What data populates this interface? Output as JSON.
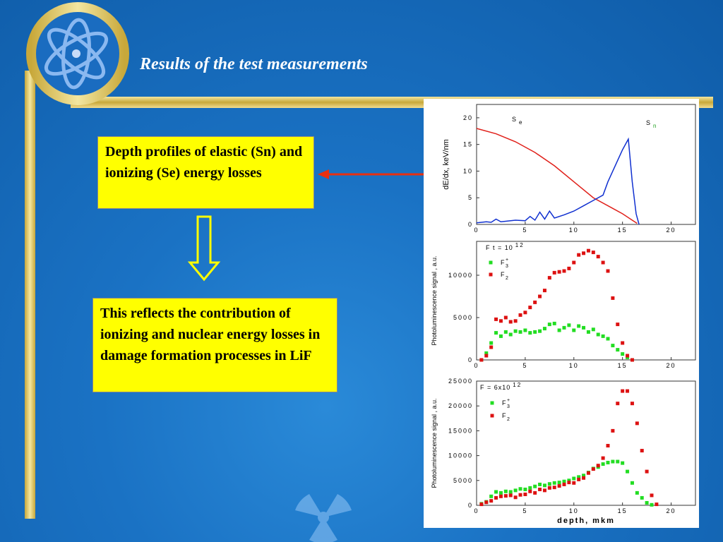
{
  "slide": {
    "title": "Results of the test measurements",
    "box1": "Depth profiles of elastic (Sn) and ionizing (Se) energy losses",
    "box2": "This reflects the contribution of ionizing and nuclear energy losses in damage formation processes in LiF"
  },
  "chart_data": [
    {
      "type": "line",
      "y_label": "dE/dx, keV/nm",
      "xlim": [
        0,
        22.5
      ],
      "ylim": [
        0,
        22.5
      ],
      "xticks": [
        0,
        5,
        10,
        15,
        20
      ],
      "yticks": [
        0,
        5,
        10,
        15,
        20
      ],
      "annotations": [
        {
          "text": "S",
          "sub": "e"
        },
        {
          "text": "S",
          "sub": "n"
        }
      ],
      "series": [
        {
          "name": "Se",
          "color": "#e0201a",
          "x": [
            0,
            2,
            4,
            6,
            8,
            10,
            12,
            14,
            15,
            16,
            16.5
          ],
          "values": [
            18,
            17,
            15.5,
            13.5,
            11,
            8,
            5,
            3,
            2,
            0.8,
            0.2
          ]
        },
        {
          "name": "Sn",
          "color": "#1030d0",
          "x": [
            0,
            1,
            1.5,
            2,
            2.5,
            3,
            4,
            5,
            5.5,
            6,
            6.5,
            7,
            7.5,
            8,
            9,
            10,
            11,
            12,
            13,
            13.5,
            14,
            14.5,
            15,
            15.6,
            16,
            16.4,
            16.7
          ],
          "values": [
            0.3,
            0.5,
            0.4,
            1,
            0.5,
            0.6,
            0.8,
            0.7,
            1.5,
            0.8,
            2.3,
            1,
            2.5,
            1.2,
            1.8,
            2.5,
            3.5,
            4.5,
            5.5,
            8,
            10,
            12,
            14,
            16,
            8,
            2,
            0
          ]
        }
      ]
    },
    {
      "type": "scatter",
      "y_label": "Photoluminescence signal , a.u.",
      "xlim": [
        0,
        22.5
      ],
      "ylim": [
        0,
        14000
      ],
      "xticks": [
        0,
        5,
        10,
        15,
        20
      ],
      "yticks": [
        0,
        5000,
        10000
      ],
      "annotations": [
        {
          "text": "F t = 10",
          "sup": "12"
        }
      ],
      "x": [
        0.5,
        1,
        1.5,
        2,
        2.5,
        3,
        3.5,
        4,
        4.5,
        5,
        5.5,
        6,
        6.5,
        7,
        7.5,
        8,
        8.5,
        9,
        9.5,
        10,
        10.5,
        11,
        11.5,
        12,
        12.5,
        13,
        13.5,
        14,
        14.5,
        15,
        15.5,
        16
      ],
      "series": [
        {
          "name": "F",
          "sub": "3",
          "sup": "+",
          "color": "#22dd22",
          "values": [
            0,
            800,
            2000,
            3200,
            2800,
            3300,
            3000,
            3400,
            3300,
            3500,
            3200,
            3300,
            3400,
            3700,
            4200,
            4300,
            3500,
            3800,
            4100,
            3500,
            4000,
            3800,
            3300,
            3600,
            3000,
            2800,
            2500,
            1700,
            1200,
            700,
            300,
            0
          ]
        },
        {
          "name": "F",
          "sub": "2",
          "color": "#dd1111",
          "values": [
            0,
            500,
            1500,
            4800,
            4600,
            5000,
            4500,
            4600,
            5300,
            5600,
            6200,
            6800,
            7500,
            8200,
            9700,
            10300,
            10400,
            10500,
            10800,
            11500,
            12400,
            12600,
            12900,
            12700,
            12200,
            11500,
            10500,
            7300,
            4200,
            2000,
            500,
            0
          ]
        }
      ]
    },
    {
      "type": "scatter",
      "y_label": "Photoluminescence signal , a.u.",
      "x_label": "depth, mkm",
      "xlim": [
        0,
        22.5
      ],
      "ylim": [
        0,
        25000
      ],
      "xticks": [
        0,
        5,
        10,
        15,
        20
      ],
      "yticks": [
        0,
        5000,
        10000,
        15000,
        20000,
        25000
      ],
      "annotations": [
        {
          "text": "F = 6x10",
          "sup": "12"
        }
      ],
      "x": [
        0.5,
        1,
        1.5,
        2,
        2.5,
        3,
        3.5,
        4,
        4.5,
        5,
        5.5,
        6,
        6.5,
        7,
        7.5,
        8,
        8.5,
        9,
        9.5,
        10,
        10.5,
        11,
        11.5,
        12,
        12.5,
        13,
        13.5,
        14,
        14.5,
        15,
        15.5,
        16,
        16.5,
        17,
        17.5,
        18,
        18.5
      ],
      "series": [
        {
          "name": "F",
          "sub": "3",
          "sup": "+",
          "color": "#22dd22",
          "values": [
            300,
            700,
            1800,
            2700,
            2500,
            2800,
            2700,
            3000,
            3300,
            3200,
            3500,
            3800,
            4200,
            4000,
            4300,
            4500,
            4600,
            4800,
            5000,
            5400,
            5700,
            6000,
            6600,
            7400,
            7700,
            8300,
            8600,
            8800,
            8800,
            8500,
            6800,
            4500,
            2500,
            1500,
            500,
            100,
            null
          ]
        },
        {
          "name": "F",
          "sub": "2",
          "color": "#dd1111",
          "values": [
            200,
            600,
            900,
            1500,
            1800,
            1900,
            2000,
            1600,
            2100,
            2200,
            2800,
            2500,
            3200,
            3000,
            3500,
            3600,
            3900,
            4200,
            4600,
            4500,
            5200,
            5500,
            6500,
            7300,
            8000,
            9500,
            12000,
            15000,
            20500,
            23000,
            23000,
            20500,
            16500,
            11000,
            6800,
            2000,
            200
          ]
        }
      ]
    }
  ]
}
